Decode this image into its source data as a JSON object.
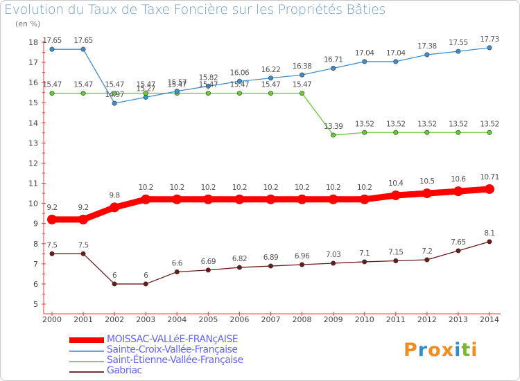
{
  "title": "Evolution du Taux de Taxe Foncière sur les Propriétés Bâties",
  "unit_label": "(en %)",
  "logo": {
    "letters": [
      "P",
      "r",
      "o",
      "x",
      "i",
      "t",
      "i"
    ],
    "colors": [
      "#f28c1e",
      "#2f8fce",
      "#f28c1e",
      "#f28c1e",
      "#2f8fce",
      "#78b82a",
      "#f28c1e"
    ]
  },
  "chart_data": {
    "type": "line",
    "title": "Evolution du Taux de Taxe Foncière sur les Propriétés Bâties",
    "ylabel": "(en %)",
    "xlabel": "",
    "ylim": [
      5,
      18
    ],
    "yticks": [
      5,
      6,
      7,
      8,
      9,
      10,
      11,
      12,
      13,
      14,
      15,
      16,
      17,
      18
    ],
    "x": [
      2000,
      2001,
      2002,
      2003,
      2004,
      2005,
      2006,
      2007,
      2008,
      2009,
      2010,
      2011,
      2012,
      2013,
      2014
    ],
    "grid": false,
    "legend_position": "bottom-left",
    "series": [
      {
        "name": "MOISSAC-VALLéE-FRANçAISE",
        "color": "#ff0000",
        "labels": [
          "9.2",
          "9.2",
          "9.8",
          "10.2",
          "10.2",
          "10.2",
          "10.2",
          "10.2",
          "10.2",
          "10.2",
          "10.2",
          "10.4",
          "10.5",
          "10.6",
          "10.71"
        ],
        "values": [
          9.2,
          9.2,
          9.8,
          10.2,
          10.2,
          10.2,
          10.2,
          10.2,
          10.2,
          10.2,
          10.2,
          10.4,
          10.5,
          10.6,
          10.71
        ]
      },
      {
        "name": "Sainte-Croix-Vallée-Française",
        "color": "#3f8fce",
        "labels": [
          "17.65",
          "17.65",
          "14.97",
          "15.27",
          "15.57",
          "15.82",
          "16.06",
          "16.22",
          "16.38",
          "16.71",
          "17.04",
          "17.04",
          "17.38",
          "17.55",
          "17.73"
        ],
        "values": [
          17.65,
          17.65,
          14.97,
          15.27,
          15.57,
          15.82,
          16.06,
          16.22,
          16.38,
          16.71,
          17.04,
          17.04,
          17.38,
          17.55,
          17.73
        ]
      },
      {
        "name": "Saint-Étienne-Vallée-Française",
        "color": "#66cc33",
        "labels": [
          "15.47",
          "15.47",
          "15.47",
          "15.47",
          "15.47",
          "15.47",
          "15.47",
          "15.47",
          "15.47",
          "13.39",
          "13.52",
          "13.52",
          "13.52",
          "13.52",
          "13.52"
        ],
        "values": [
          15.47,
          15.47,
          15.47,
          15.47,
          15.47,
          15.47,
          15.47,
          15.47,
          15.47,
          13.39,
          13.52,
          13.52,
          13.52,
          13.52,
          13.52
        ]
      },
      {
        "name": "Gabriac",
        "color": "#6b1a1a",
        "labels": [
          "7.5",
          "7.5",
          "6",
          "6",
          "6.6",
          "6.69",
          "6.82",
          "6.89",
          "6.96",
          "7.03",
          "7.1",
          "7.15",
          "7.2",
          "7.65",
          "8.1"
        ],
        "values": [
          7.5,
          7.5,
          6,
          6,
          6.6,
          6.69,
          6.82,
          6.89,
          6.96,
          7.03,
          7.1,
          7.15,
          7.2,
          7.65,
          8.1
        ]
      }
    ]
  }
}
